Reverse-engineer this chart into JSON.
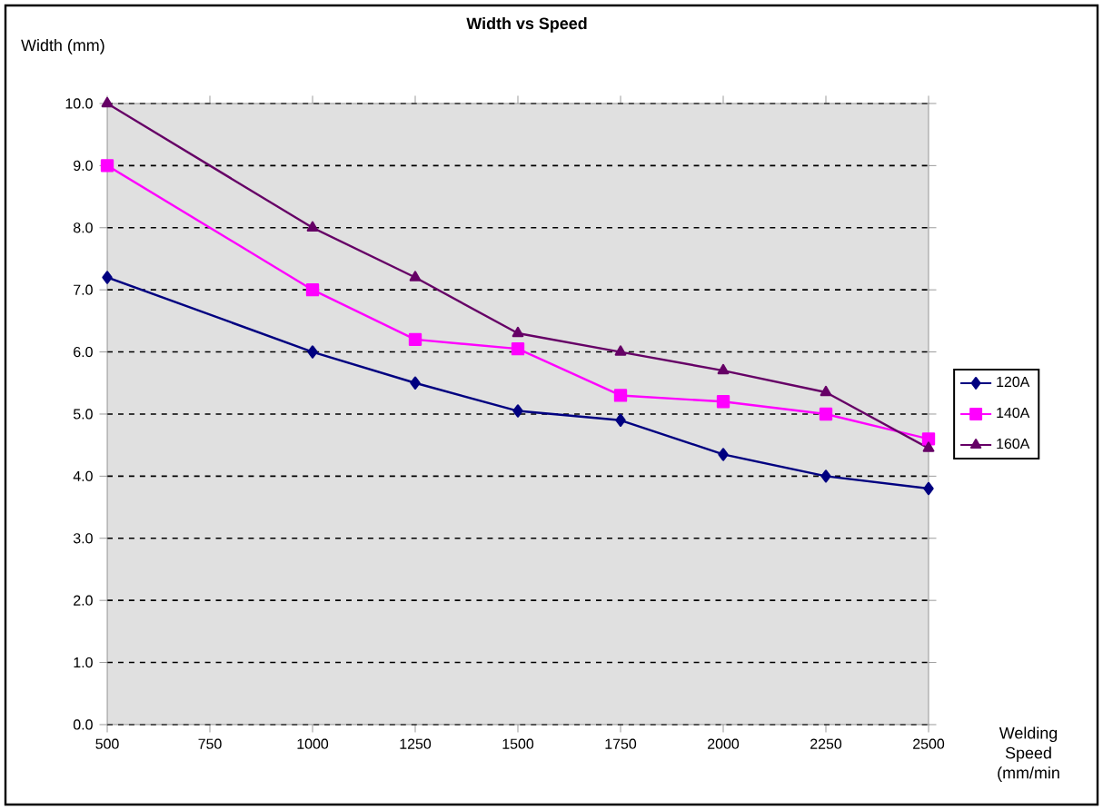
{
  "chart_data": {
    "type": "line",
    "title": "Width vs Speed",
    "xlabel": "Welding Speed (mm/min",
    "ylabel": "Width (mm)",
    "x": [
      500,
      1000,
      1250,
      1500,
      1750,
      2000,
      2250,
      2500
    ],
    "xlim": [
      500,
      2500
    ],
    "xticks": [
      500,
      750,
      1000,
      1250,
      1500,
      1750,
      2000,
      2250,
      2500
    ],
    "ylim": [
      0,
      10
    ],
    "yticks": [
      {
        "value": 0,
        "label": "0.0"
      },
      {
        "value": 1,
        "label": "1.0"
      },
      {
        "value": 2,
        "label": "2.0"
      },
      {
        "value": 3,
        "label": "3.0"
      },
      {
        "value": 4,
        "label": "4.0"
      },
      {
        "value": 5,
        "label": "5.0"
      },
      {
        "value": 6,
        "label": "6.0"
      },
      {
        "value": 7,
        "label": "7.0"
      },
      {
        "value": 8,
        "label": "8.0"
      },
      {
        "value": 9,
        "label": "9.0"
      },
      {
        "value": 10,
        "label": "10.0"
      }
    ],
    "grid": "y",
    "legend": "right",
    "series": [
      {
        "name": "120A",
        "color": "#000080",
        "marker": "diamond",
        "values": [
          7.2,
          6.0,
          5.5,
          5.05,
          4.9,
          4.35,
          4.0,
          3.8
        ]
      },
      {
        "name": "140A",
        "color": "#ff00ff",
        "marker": "square",
        "values": [
          9.0,
          7.0,
          6.2,
          6.05,
          5.3,
          5.2,
          5.0,
          4.6
        ]
      },
      {
        "name": "160A",
        "color": "#660066",
        "marker": "triangle",
        "values": [
          10.0,
          8.0,
          7.2,
          6.3,
          6.0,
          5.7,
          5.35,
          4.45
        ]
      }
    ]
  }
}
